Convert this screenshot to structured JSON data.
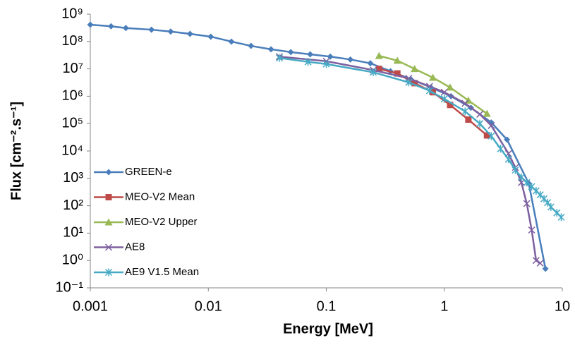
{
  "chart_data": {
    "type": "line",
    "x_label": "Energy [MeV]",
    "y_label": "Flux [cm⁻².s⁻¹]",
    "x_log": true,
    "y_log": true,
    "xlim": [
      0.001,
      10
    ],
    "xticks": [
      0.001,
      0.01,
      0.1,
      1,
      10
    ],
    "ylim": [
      0.1,
      1000000000
    ],
    "yticks": [
      {
        "value": 0.1,
        "label": "10⁻¹"
      },
      {
        "value": 1,
        "label": "10⁰"
      },
      {
        "value": 10,
        "label": "10¹"
      },
      {
        "value": 100,
        "label": "10²"
      },
      {
        "value": 1000,
        "label": "10³"
      },
      {
        "value": 10000,
        "label": "10⁴"
      },
      {
        "value": 100000,
        "label": "10⁵"
      },
      {
        "value": 1000000,
        "label": "10⁶"
      },
      {
        "value": 10000000,
        "label": "10⁷"
      },
      {
        "value": 100000000,
        "label": "10⁸"
      },
      {
        "value": 1000000000,
        "label": "10⁹"
      }
    ],
    "legend": "lower left",
    "series": [
      {
        "name": "GREEN-e",
        "color": "#4a7ebb",
        "marker": "diamond",
        "x": [
          0.001,
          0.0015,
          0.002,
          0.0033,
          0.0048,
          0.007,
          0.0105,
          0.0157,
          0.023,
          0.034,
          0.05,
          0.073,
          0.108,
          0.16,
          0.236,
          0.35,
          0.52,
          0.77,
          1.14,
          1.68,
          2.5,
          3.4,
          5.2,
          7.2
        ],
        "values": [
          410000000,
          360000000,
          310000000,
          270000000,
          230000000,
          190000000,
          150000000,
          99000000,
          69000000,
          52000000,
          41000000,
          34000000,
          28000000,
          22000000,
          16000000,
          8200000,
          4200000,
          2100000,
          1000000,
          380000,
          110000,
          26000,
          650,
          0.5
        ]
      },
      {
        "name": "MEO-V2 Mean",
        "color": "#be4b48",
        "marker": "square",
        "x": [
          0.28,
          0.4,
          0.56,
          0.8,
          1.12,
          1.6,
          2.3
        ],
        "values": [
          10000000,
          6800000,
          3000000,
          1400000,
          480000,
          140000,
          37000
        ]
      },
      {
        "name": "MEO-V2 Upper",
        "color": "#98b954",
        "marker": "triangle",
        "x": [
          0.28,
          0.4,
          0.56,
          0.8,
          1.12,
          1.6,
          2.3
        ],
        "values": [
          30000000,
          20000000,
          10000000,
          4800000,
          2100000,
          700000,
          230000
        ]
      },
      {
        "name": "AE8",
        "color": "#7d60a0",
        "marker": "x",
        "x": [
          0.04,
          0.1,
          0.25,
          0.5,
          0.75,
          1,
          1.5,
          2,
          2.5,
          3.5,
          4,
          4.5,
          5,
          5.5,
          6,
          6.5
        ],
        "values": [
          28000000,
          19000000,
          9000000,
          4500000,
          2300000,
          1400000,
          550000,
          220000,
          85000,
          8000,
          2500,
          700,
          120,
          13,
          1,
          0.8
        ]
      },
      {
        "name": "AE9 V1.5 Mean",
        "color": "#46aac5",
        "marker": "star",
        "x": [
          0.04,
          0.07,
          0.1,
          0.25,
          0.5,
          0.75,
          1,
          1.5,
          2,
          2.5,
          3,
          3.5,
          4,
          4.5,
          5,
          5.5,
          6,
          6.5,
          7,
          7.5,
          8,
          9,
          9.8
        ],
        "values": [
          25000000,
          18000000,
          15000000,
          7500000,
          3200000,
          1600000,
          800000,
          280000,
          100000,
          35000,
          12000,
          5000,
          2000,
          1100,
          700,
          500,
          350,
          250,
          180,
          130,
          90,
          55,
          38
        ]
      }
    ]
  }
}
